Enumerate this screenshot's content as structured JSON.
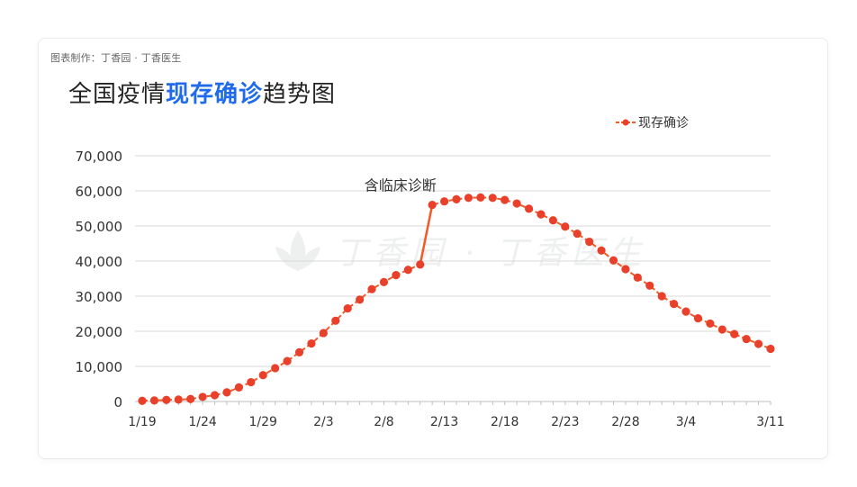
{
  "credit": "图表制作：丁香园 · 丁香医生",
  "title": {
    "prefix": "全国疫情",
    "highlight": "现存确诊",
    "suffix": "趋势图"
  },
  "watermark": "丁香园 · 丁香医生",
  "colors": {
    "line": "#f25a28",
    "marker": "#e8402a",
    "highlight": "#1f6bea",
    "grid": "#d9d9d9"
  },
  "chart_data": {
    "type": "line",
    "series": [
      {
        "name": "现存确诊",
        "values": [
          200,
          300,
          450,
          550,
          700,
          1300,
          1800,
          2600,
          4000,
          5500,
          7500,
          9500,
          11500,
          14000,
          16500,
          19500,
          23000,
          26500,
          29000,
          32000,
          34000,
          36000,
          37500,
          39000,
          56000,
          57000,
          57600,
          58000,
          58100,
          58000,
          57400,
          56400,
          54900,
          53300,
          51600,
          49800,
          47800,
          45500,
          43000,
          40200,
          37700,
          35300,
          33000,
          30000,
          27800,
          25600,
          23700,
          22200,
          20500,
          19200,
          17800,
          16400,
          15000
        ]
      }
    ],
    "x_tick_labels": [
      "1/19",
      "1/24",
      "1/29",
      "2/3",
      "2/8",
      "2/13",
      "2/18",
      "2/23",
      "2/28",
      "3/4",
      "3/11"
    ],
    "x_tick_indices": [
      0,
      5,
      10,
      15,
      20,
      25,
      30,
      35,
      40,
      45,
      52
    ],
    "y_tick_labels": [
      "0",
      "10,000",
      "20,000",
      "30,000",
      "40,000",
      "50,000",
      "60,000",
      "70,000"
    ],
    "ylim": [
      0,
      70000
    ],
    "grid": true,
    "legend_position": "top-right",
    "annotation": {
      "text": "含临床诊断",
      "between_points": [
        23,
        24
      ]
    }
  }
}
